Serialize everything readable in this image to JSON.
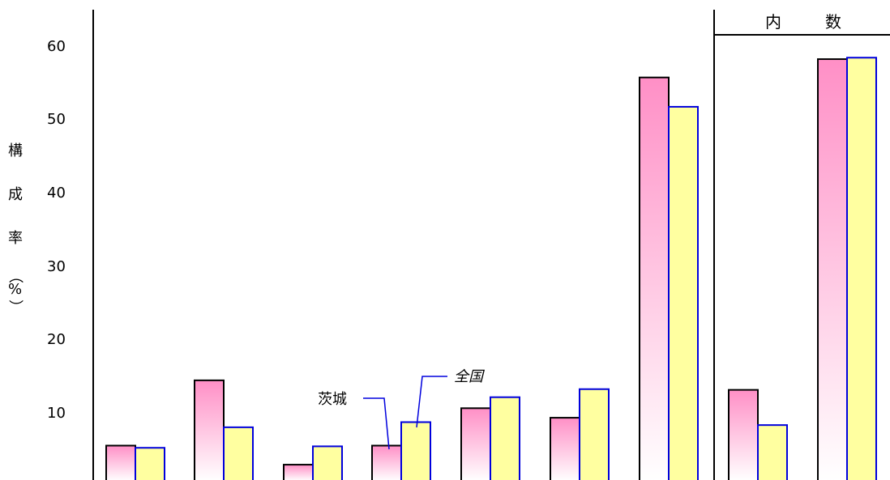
{
  "chart_data": {
    "type": "bar",
    "categories": [
      "",
      "",
      "",
      "",
      "",
      "",
      "",
      "",
      ""
    ],
    "series": [
      {
        "name": "茨城",
        "values": [
          4.8,
          13.7,
          2.2,
          4.8,
          9.9,
          8.6,
          55.0,
          12.4,
          57.5
        ]
      },
      {
        "name": "全国",
        "values": [
          4.5,
          7.3,
          4.7,
          8.0,
          11.4,
          12.5,
          51.0,
          7.6,
          57.7
        ]
      }
    ],
    "ylim": [
      0,
      64
    ],
    "yticks": [
      "10",
      "20",
      "30",
      "40",
      "50",
      "60"
    ],
    "ylabel_chars": [
      "構",
      "成",
      "率",
      "（",
      "%",
      "）"
    ],
    "section_header_chars": [
      "内",
      "数"
    ],
    "legend_labels": {
      "series1": "茨城",
      "series2": "全国"
    },
    "colors": {
      "series1_fill_top": "#ff8fc6",
      "series1_fill_bottom": "#ffffff",
      "series1_stroke": "#000000",
      "series2_fill": "#ffffa0",
      "series2_stroke": "#0000dd",
      "annotation_line": "#0000dd"
    }
  }
}
